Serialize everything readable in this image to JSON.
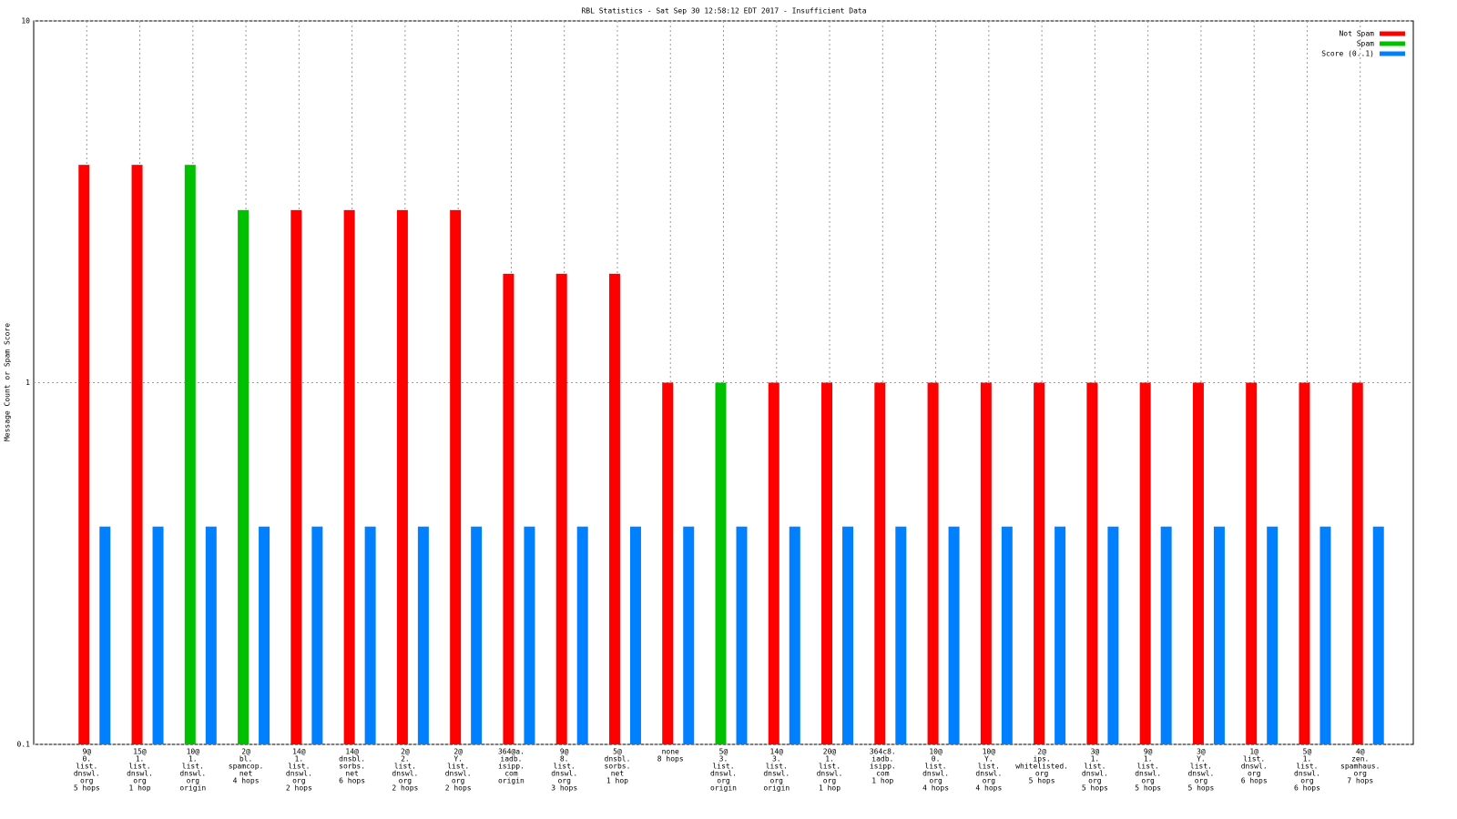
{
  "chart_data": {
    "type": "bar",
    "title": "RBL Statistics - Sat Sep 30 12:58:12 EDT 2017 - Insufficient Data",
    "y_label": "Message Count or Spam Score",
    "log_scale": true,
    "grid": true,
    "legend": "top-right",
    "ylim": [
      0.1,
      10
    ],
    "yticks": [
      0.1,
      1,
      10
    ],
    "categories": [
      [
        "9@",
        "0.",
        "list.",
        "dnswl.",
        "org",
        "5 hops"
      ],
      [
        "15@",
        "1.",
        "list.",
        "dnswl.",
        "org",
        "1 hop"
      ],
      [
        "10@",
        "1.",
        "list.",
        "dnswl.",
        "org",
        "origin"
      ],
      [
        "2@",
        "bl.",
        "spamcop.",
        "net",
        "4 hops"
      ],
      [
        "14@",
        "1.",
        "list.",
        "dnswl.",
        "org",
        "2 hops"
      ],
      [
        "14@",
        "dnsbl.",
        "sorbs.",
        "net",
        "6 hops"
      ],
      [
        "2@",
        "2.",
        "list.",
        "dnswl.",
        "org",
        "2 hops"
      ],
      [
        "2@",
        "Y.",
        "list.",
        "dnswl.",
        "org",
        "2 hops"
      ],
      [
        "364@a.",
        "iadb.",
        "isipp.",
        "com",
        "origin"
      ],
      [
        "9@",
        "8.",
        "list.",
        "dnswl.",
        "org",
        "3 hops"
      ],
      [
        "5@",
        "dnsbl.",
        "sorbs.",
        "net",
        "1 hop"
      ],
      [
        "none",
        "8 hops"
      ],
      [
        "5@",
        "3.",
        "list.",
        "dnswl.",
        "org",
        "origin"
      ],
      [
        "14@",
        "3.",
        "list.",
        "dnswl.",
        "org",
        "origin"
      ],
      [
        "20@",
        "1.",
        "list.",
        "dnswl.",
        "org",
        "1 hop"
      ],
      [
        "364c8.",
        "iadb.",
        "isipp.",
        "com",
        "1 hop"
      ],
      [
        "10@",
        "0.",
        "list.",
        "dnswl.",
        "org",
        "4 hops"
      ],
      [
        "10@",
        "Y.",
        "list.",
        "dnswl.",
        "org",
        "4 hops"
      ],
      [
        "2@",
        "ips.",
        "whitelisted.",
        "org",
        "5 hops"
      ],
      [
        "3@",
        "1.",
        "list.",
        "dnswl.",
        "org",
        "5 hops"
      ],
      [
        "9@",
        "1.",
        "list.",
        "dnswl.",
        "org",
        "5 hops"
      ],
      [
        "3@",
        "Y.",
        "list.",
        "dnswl.",
        "org",
        "5 hops"
      ],
      [
        "1@",
        "list.",
        "dnswl.",
        "org",
        "6 hops"
      ],
      [
        "5@",
        "1.",
        "list.",
        "dnswl.",
        "org",
        "6 hops"
      ],
      [
        "4@",
        "zen.",
        "spamhaus.",
        "org",
        "7 hops"
      ]
    ],
    "series": [
      {
        "name": "Not Spam",
        "color": "#ff0000",
        "values": [
          4,
          4,
          null,
          null,
          3,
          3,
          3,
          3,
          2,
          2,
          2,
          1,
          null,
          1,
          1,
          1,
          1,
          1,
          1,
          1,
          1,
          1,
          1,
          1,
          1
        ]
      },
      {
        "name": "Spam",
        "color": "#00c000",
        "values": [
          null,
          null,
          4,
          3,
          null,
          null,
          null,
          null,
          null,
          null,
          null,
          null,
          1,
          null,
          null,
          null,
          null,
          null,
          null,
          null,
          null,
          null,
          null,
          null,
          null
        ]
      },
      {
        "name": "Score (0..1)",
        "color": "#0080ff",
        "values": [
          0.4,
          0.4,
          0.4,
          0.4,
          0.4,
          0.4,
          0.4,
          0.4,
          0.4,
          0.4,
          0.4,
          0.4,
          0.4,
          0.4,
          0.4,
          0.4,
          0.4,
          0.4,
          0.4,
          0.4,
          0.4,
          0.4,
          0.4,
          0.4,
          0.4
        ]
      }
    ]
  }
}
